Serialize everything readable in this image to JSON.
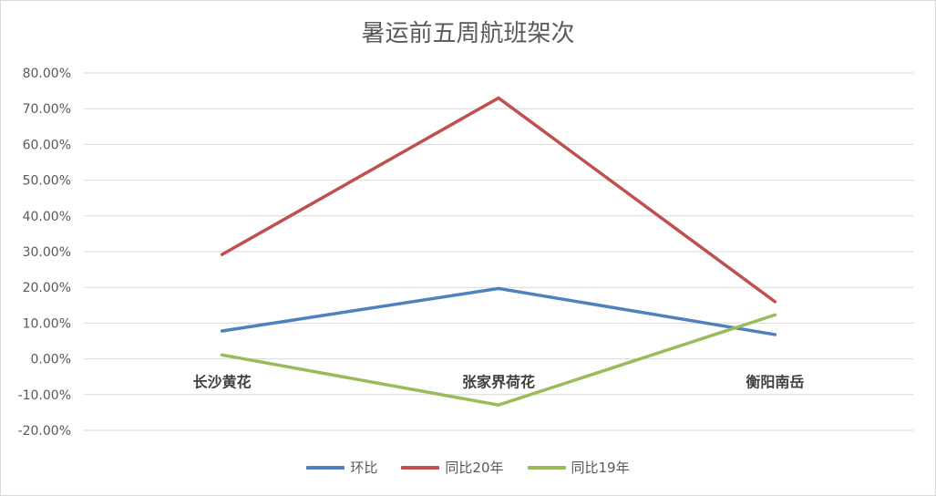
{
  "chart_data": {
    "type": "line",
    "title": "暑运前五周航班架次",
    "categories": [
      "长沙黄花",
      "张家界荷花",
      "衡阳南岳"
    ],
    "y_ticks": [
      "80.00%",
      "70.00%",
      "60.00%",
      "50.00%",
      "40.00%",
      "30.00%",
      "20.00%",
      "10.00%",
      "0.00%",
      "-10.00%",
      "-20.00%"
    ],
    "ylim": [
      -20,
      80
    ],
    "y_unit": "%",
    "grid": true,
    "legend_position": "bottom",
    "series": [
      {
        "name": "环比",
        "color": "#4f81bd",
        "values": [
          7.8,
          19.7,
          6.8
        ]
      },
      {
        "name": "同比20年",
        "color": "#c0504d",
        "values": [
          29.2,
          73.0,
          16.0
        ]
      },
      {
        "name": "同比19年",
        "color": "#9bbb59",
        "values": [
          1.1,
          -12.9,
          12.3
        ]
      }
    ]
  }
}
